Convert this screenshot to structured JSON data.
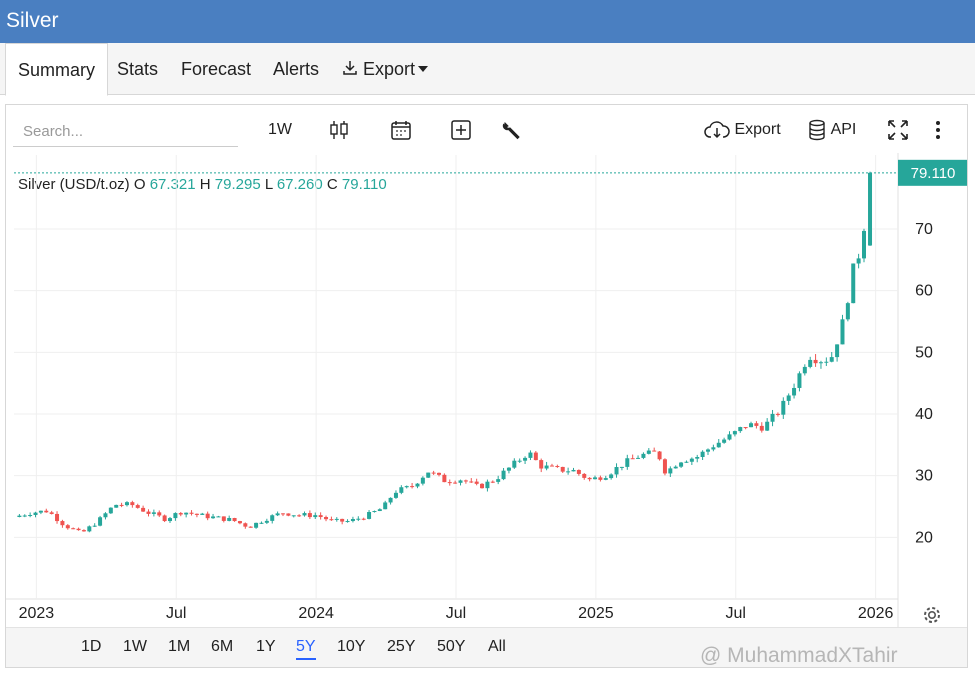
{
  "window": {
    "title": "Silver"
  },
  "tabs": [
    {
      "label": "Summary",
      "active": true
    },
    {
      "label": "Stats"
    },
    {
      "label": "Forecast"
    },
    {
      "label": "Alerts"
    },
    {
      "label": "Export"
    }
  ],
  "toolbar": {
    "search_placeholder": "Search...",
    "interval_label": "1W",
    "export_label": "Export",
    "api_label": "API",
    "icons": [
      "candles-icon",
      "calendar-icon",
      "add-indicator-icon",
      "wrench-icon",
      "cloud-download-icon",
      "database-icon",
      "fullscreen-icon",
      "more-vertical-icon",
      "settings-gear-icon"
    ]
  },
  "legend": {
    "symbol": "Silver (USD/t.oz)",
    "o_label": "O",
    "o": "67.321",
    "h_label": "H",
    "h": "79.295",
    "l_label": "L",
    "l": "67.260",
    "c_label": "C",
    "c": "79.110"
  },
  "price_label": "79.110",
  "colors": {
    "up": "#26a69a",
    "down": "#ef5350",
    "header": "#4a7fc1",
    "active": "#2962ff"
  },
  "ranges": [
    {
      "label": "1D"
    },
    {
      "label": "1W"
    },
    {
      "label": "1M"
    },
    {
      "label": "6M"
    },
    {
      "label": "1Y"
    },
    {
      "label": "5Y",
      "active": true
    },
    {
      "label": "10Y"
    },
    {
      "label": "25Y"
    },
    {
      "label": "50Y"
    },
    {
      "label": "All"
    }
  ],
  "watermark": "@ MuhammadXTahir",
  "chart_data": {
    "type": "candlestick",
    "interval": "1W",
    "y_ticks": [
      20,
      30,
      40,
      50,
      60,
      70
    ],
    "y_range": [
      10,
      82
    ],
    "x_ticks": [
      {
        "label": "2023",
        "t": 2023.0
      },
      {
        "label": "Jul",
        "t": 2023.5
      },
      {
        "label": "2024",
        "t": 2024.0
      },
      {
        "label": "Jul",
        "t": 2024.5
      },
      {
        "label": "2025",
        "t": 2025.0
      },
      {
        "label": "Jul",
        "t": 2025.5
      },
      {
        "label": "2026",
        "t": 2026.0
      }
    ],
    "x_range": [
      2022.92,
      2026.08
    ],
    "close_anchors": [
      [
        2022.92,
        23.3
      ],
      [
        2022.98,
        24.0
      ],
      [
        2023.04,
        24.3
      ],
      [
        2023.1,
        22.0
      ],
      [
        2023.16,
        20.6
      ],
      [
        2023.22,
        22.6
      ],
      [
        2023.28,
        25.3
      ],
      [
        2023.34,
        25.3
      ],
      [
        2023.4,
        24.0
      ],
      [
        2023.46,
        23.0
      ],
      [
        2023.52,
        24.2
      ],
      [
        2023.58,
        23.6
      ],
      [
        2023.64,
        23.2
      ],
      [
        2023.7,
        22.8
      ],
      [
        2023.76,
        21.7
      ],
      [
        2023.82,
        23.0
      ],
      [
        2023.88,
        24.0
      ],
      [
        2023.94,
        23.6
      ],
      [
        2024.0,
        23.6
      ],
      [
        2024.06,
        22.6
      ],
      [
        2024.12,
        22.6
      ],
      [
        2024.18,
        23.5
      ],
      [
        2024.24,
        24.8
      ],
      [
        2024.28,
        27.4
      ],
      [
        2024.34,
        28.2
      ],
      [
        2024.4,
        30.7
      ],
      [
        2024.46,
        29.2
      ],
      [
        2024.52,
        29.4
      ],
      [
        2024.58,
        28.1
      ],
      [
        2024.64,
        29.4
      ],
      [
        2024.7,
        31.6
      ],
      [
        2024.76,
        33.8
      ],
      [
        2024.8,
        31.6
      ],
      [
        2024.86,
        31.0
      ],
      [
        2024.92,
        30.8
      ],
      [
        2024.98,
        29.3
      ],
      [
        2025.04,
        30.2
      ],
      [
        2025.1,
        32.0
      ],
      [
        2025.16,
        33.3
      ],
      [
        2025.22,
        33.8
      ],
      [
        2025.25,
        30.5
      ],
      [
        2025.3,
        32.5
      ],
      [
        2025.36,
        33.0
      ],
      [
        2025.42,
        34.9
      ],
      [
        2025.48,
        36.4
      ],
      [
        2025.54,
        38.3
      ],
      [
        2025.6,
        37.9
      ],
      [
        2025.66,
        40.7
      ],
      [
        2025.72,
        45.7
      ],
      [
        2025.76,
        49.6
      ],
      [
        2025.8,
        48.8
      ],
      [
        2025.84,
        49.0
      ],
      [
        2025.88,
        54.3
      ],
      [
        2025.92,
        63.3
      ],
      [
        2025.95,
        67.3
      ],
      [
        2025.98,
        79.1
      ]
    ],
    "last": {
      "open": 67.321,
      "high": 79.295,
      "low": 67.26,
      "close": 79.11
    }
  }
}
